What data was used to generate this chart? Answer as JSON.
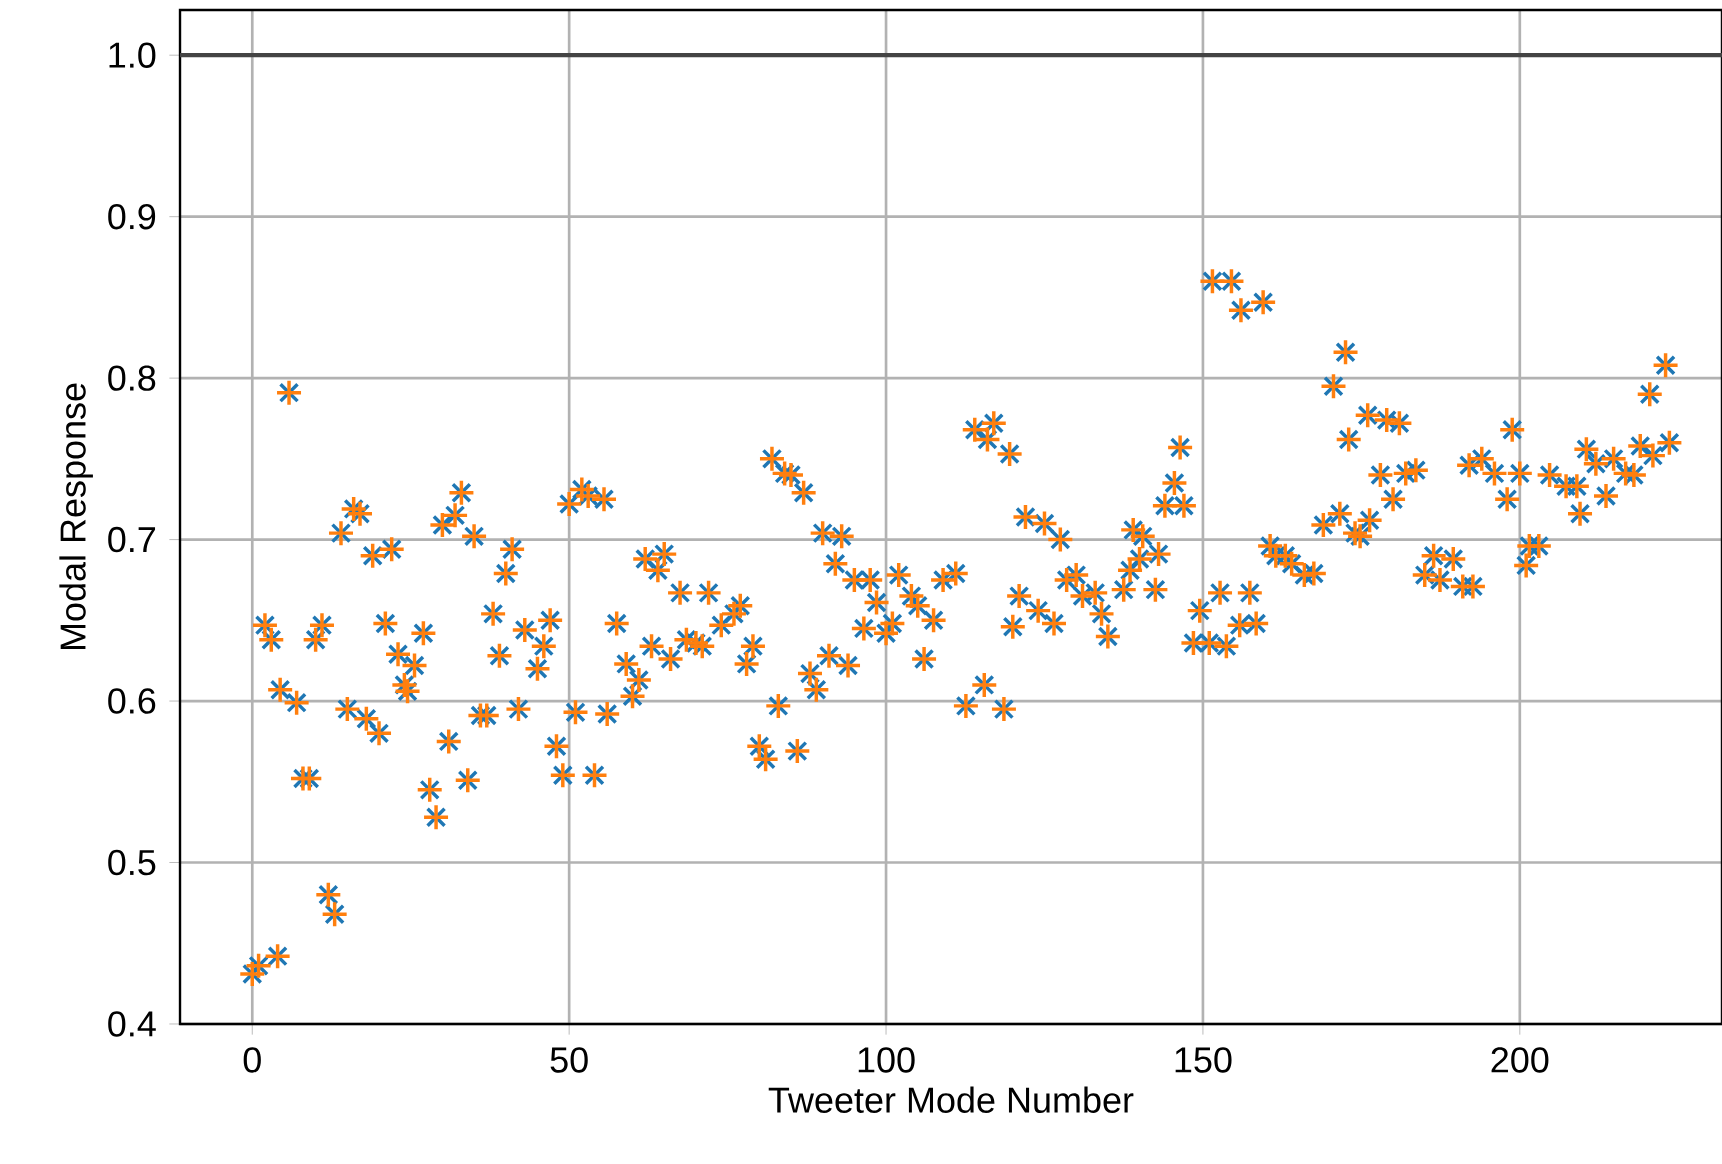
{
  "chart_data": {
    "type": "scatter",
    "xlabel": "Tweeter Mode Number",
    "ylabel": "Modal Response",
    "x": [
      0,
      1,
      2,
      3,
      4,
      4.4,
      5.8,
      7,
      8,
      9,
      10,
      11,
      12,
      13,
      14,
      15,
      16,
      17,
      18,
      19,
      20,
      21,
      22,
      23,
      24,
      24.5,
      25.6,
      27,
      28,
      29,
      30,
      31,
      32,
      33,
      34,
      35,
      36,
      37,
      38,
      39,
      40,
      41,
      42,
      43,
      45,
      46,
      47,
      48,
      49,
      50,
      51,
      52,
      53,
      54,
      55.5,
      56,
      57.5,
      59,
      60,
      61,
      62,
      63,
      64,
      65,
      66,
      67.5,
      68.5,
      70,
      71,
      72,
      74,
      76,
      77,
      78,
      79,
      80,
      81,
      82,
      83,
      84,
      85,
      86,
      87,
      88,
      89,
      90,
      91,
      92,
      93,
      94,
      95,
      96.5,
      97.5,
      98.5,
      100,
      101,
      102,
      104,
      105,
      106,
      107.5,
      109,
      111,
      112.6,
      114,
      115.5,
      116,
      117,
      118.6,
      119.5,
      120,
      121,
      122,
      124,
      125,
      126.5,
      127.5,
      128.5,
      130,
      131,
      133,
      134,
      135,
      137.5,
      138.5,
      139,
      140,
      140.5,
      142.5,
      143,
      144,
      145.5,
      146.4,
      147,
      148.5,
      149.5,
      151,
      151.5,
      152.7,
      153.7,
      154.5,
      155.8,
      156,
      157.4,
      158.4,
      159.5,
      160.6,
      161.5,
      163,
      164,
      166,
      167.5,
      169,
      170.6,
      171.6,
      172.5,
      173,
      174,
      174.8,
      176,
      176.3,
      178,
      179,
      180,
      181,
      182,
      183.6,
      185,
      186.4,
      187.4,
      189.5,
      191,
      192,
      192.6,
      194,
      196,
      198,
      198.8,
      200,
      201,
      201.5,
      203,
      204.7,
      207.3,
      209,
      209.5,
      210.5,
      212,
      213.6,
      214.8,
      216.7,
      218,
      219,
      220.5,
      221,
      223,
      223.6
    ],
    "series": [
      {
        "color": "#1f77b4",
        "marker": "cross",
        "values": [
          0.431,
          0.436,
          0.647,
          0.638,
          0.442,
          0.607,
          0.791,
          0.599,
          0.552,
          0.552,
          0.638,
          0.647,
          0.48,
          0.468,
          0.704,
          0.595,
          0.719,
          0.716,
          0.589,
          0.69,
          0.58,
          0.648,
          0.694,
          0.629,
          0.61,
          0.606,
          0.622,
          0.642,
          0.545,
          0.528,
          0.709,
          0.575,
          0.715,
          0.729,
          0.551,
          0.702,
          0.591,
          0.591,
          0.654,
          0.628,
          0.679,
          0.694,
          0.595,
          0.644,
          0.62,
          0.634,
          0.65,
          0.572,
          0.554,
          0.722,
          0.593,
          0.731,
          0.727,
          0.554,
          0.725,
          0.592,
          0.648,
          0.623,
          0.603,
          0.613,
          0.688,
          0.634,
          0.681,
          0.691,
          0.626,
          0.667,
          0.638,
          0.636,
          0.634,
          0.667,
          0.647,
          0.654,
          0.659,
          0.623,
          0.634,
          0.572,
          0.564,
          0.75,
          0.597,
          0.741,
          0.74,
          0.569,
          0.729,
          0.617,
          0.607,
          0.704,
          0.628,
          0.685,
          0.702,
          0.622,
          0.675,
          0.645,
          0.675,
          0.661,
          0.642,
          0.648,
          0.678,
          0.665,
          0.659,
          0.626,
          0.65,
          0.675,
          0.679,
          0.597,
          0.768,
          0.61,
          0.762,
          0.772,
          0.595,
          0.753,
          0.646,
          0.665,
          0.714,
          0.656,
          0.71,
          0.648,
          0.7,
          0.675,
          0.678,
          0.665,
          0.667,
          0.654,
          0.64,
          0.669,
          0.681,
          0.706,
          0.688,
          0.702,
          0.669,
          0.691,
          0.721,
          0.735,
          0.757,
          0.721,
          0.636,
          0.656,
          0.636,
          0.86,
          0.667,
          0.634,
          0.86,
          0.647,
          0.842,
          0.667,
          0.648,
          0.847,
          0.696,
          0.69,
          0.69,
          0.685,
          0.678,
          0.679,
          0.709,
          0.795,
          0.716,
          0.816,
          0.762,
          0.704,
          0.702,
          0.777,
          0.712,
          0.74,
          0.774,
          0.725,
          0.772,
          0.741,
          0.743,
          0.678,
          0.69,
          0.675,
          0.688,
          0.671,
          0.746,
          0.671,
          0.75,
          0.741,
          0.725,
          0.768,
          0.741,
          0.684,
          0.696,
          0.696,
          0.74,
          0.733,
          0.733,
          0.716,
          0.756,
          0.747,
          0.727,
          0.75,
          0.741,
          0.74,
          0.758,
          0.79,
          0.752,
          0.808,
          0.76
        ]
      },
      {
        "color": "#ff7f0e",
        "marker": "cross",
        "values": [
          0.431,
          0.436,
          0.647,
          0.638,
          0.442,
          0.607,
          0.791,
          0.599,
          0.552,
          0.552,
          0.638,
          0.647,
          0.48,
          0.468,
          0.704,
          0.595,
          0.719,
          0.716,
          0.589,
          0.69,
          0.58,
          0.648,
          0.694,
          0.629,
          0.61,
          0.606,
          0.622,
          0.642,
          0.545,
          0.528,
          0.709,
          0.575,
          0.715,
          0.729,
          0.551,
          0.702,
          0.591,
          0.591,
          0.654,
          0.628,
          0.679,
          0.694,
          0.595,
          0.644,
          0.62,
          0.634,
          0.65,
          0.572,
          0.554,
          0.722,
          0.593,
          0.731,
          0.727,
          0.554,
          0.725,
          0.592,
          0.648,
          0.623,
          0.603,
          0.613,
          0.688,
          0.634,
          0.681,
          0.691,
          0.626,
          0.667,
          0.638,
          0.636,
          0.634,
          0.667,
          0.647,
          0.654,
          0.659,
          0.623,
          0.634,
          0.572,
          0.564,
          0.75,
          0.597,
          0.741,
          0.74,
          0.569,
          0.729,
          0.617,
          0.607,
          0.704,
          0.628,
          0.685,
          0.702,
          0.622,
          0.675,
          0.645,
          0.675,
          0.661,
          0.642,
          0.648,
          0.678,
          0.665,
          0.659,
          0.626,
          0.65,
          0.675,
          0.679,
          0.597,
          0.768,
          0.61,
          0.762,
          0.772,
          0.595,
          0.753,
          0.646,
          0.665,
          0.714,
          0.656,
          0.71,
          0.648,
          0.7,
          0.675,
          0.678,
          0.665,
          0.667,
          0.654,
          0.64,
          0.669,
          0.681,
          0.706,
          0.688,
          0.702,
          0.669,
          0.691,
          0.721,
          0.735,
          0.757,
          0.721,
          0.636,
          0.656,
          0.636,
          0.86,
          0.667,
          0.634,
          0.86,
          0.647,
          0.842,
          0.667,
          0.648,
          0.847,
          0.696,
          0.69,
          0.69,
          0.685,
          0.678,
          0.679,
          0.709,
          0.795,
          0.716,
          0.816,
          0.762,
          0.704,
          0.702,
          0.777,
          0.712,
          0.74,
          0.774,
          0.725,
          0.772,
          0.741,
          0.743,
          0.678,
          0.69,
          0.675,
          0.688,
          0.671,
          0.746,
          0.671,
          0.75,
          0.741,
          0.725,
          0.768,
          0.741,
          0.684,
          0.696,
          0.696,
          0.74,
          0.733,
          0.733,
          0.716,
          0.756,
          0.747,
          0.727,
          0.75,
          0.741,
          0.74,
          0.758,
          0.79,
          0.752,
          0.808,
          0.76
        ]
      }
    ],
    "xlim": [
      -11.4,
      231.9
    ],
    "ylim": [
      0.4,
      1.028
    ],
    "xticks": [
      0,
      50,
      100,
      150,
      200
    ],
    "yticks": [
      0.4,
      0.5,
      0.6,
      0.7,
      0.8,
      0.9,
      {
        "value": 1.0,
        "label": "1.0"
      }
    ],
    "grid": true,
    "ref_lines": [
      {
        "axis": "y",
        "value": 1.0,
        "color": "#444444"
      }
    ]
  }
}
